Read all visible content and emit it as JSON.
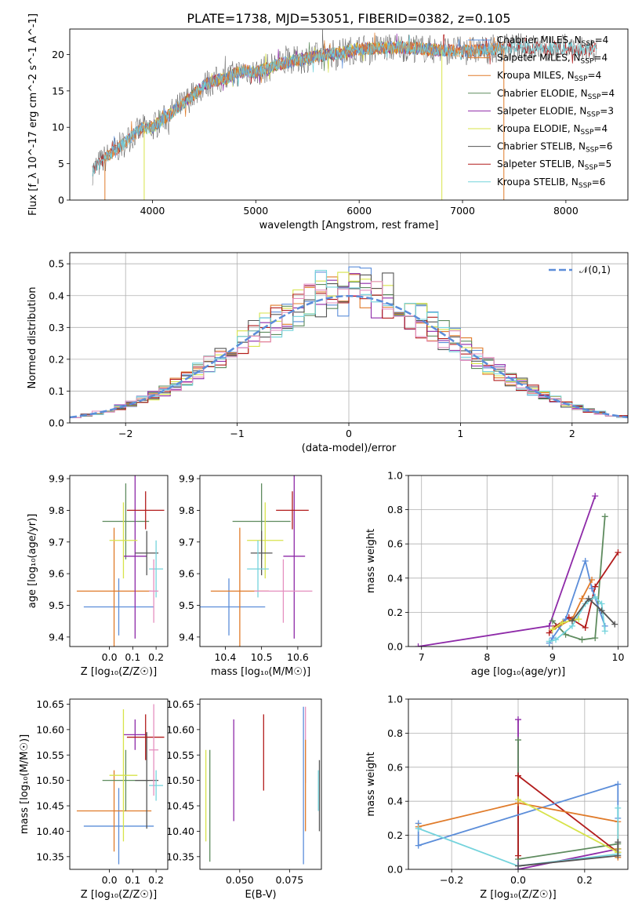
{
  "figure": {
    "title": "PLATE=1738, MJD=53051, FIBERID=0382, z=0.105",
    "colors": {
      "Chabrier MILES": "#5b8dd9",
      "Salpeter MILES": "#e07b2a",
      "Kroupa MILES": "#e07b2a",
      "Chabrier ELODIE": "#5e8b5e",
      "Salpeter ELODIE": "#8e2aa8",
      "Kroupa ELODIE": "#d7e34a",
      "Chabrier STELIB": "#555555",
      "Salpeter STELIB": "#b21c1c",
      "Kroupa STELIB": "#74d3dc",
      "extra_pink": "#e58fbf",
      "normal": "#5b8dd9"
    }
  },
  "chart_data": [
    {
      "id": "spectrum",
      "type": "line",
      "xlabel": "wavelength [Angstrom, rest frame]",
      "ylabel": "Flux [f_λ 10^-17 erg cm^-2 s^-1 A^-1]",
      "xlim": [
        3200,
        8600
      ],
      "ylim": [
        0,
        23.5
      ],
      "xticks": [
        4000,
        5000,
        6000,
        7000,
        8000
      ],
      "yticks": [
        0,
        5,
        10,
        15,
        20
      ],
      "grid": false,
      "legend_position": "right",
      "envelope": {
        "x": [
          3420,
          3500,
          3600,
          3700,
          3800,
          3900,
          4000,
          4100,
          4200,
          4300,
          4400,
          4500,
          4600,
          4700,
          4800,
          4900,
          5000,
          5200,
          5400,
          5600,
          5800,
          6000,
          6200,
          6400,
          6600,
          6800,
          7000,
          7200,
          7400,
          7600,
          7800,
          8000,
          8200,
          8300
        ],
        "y": [
          4.0,
          5.2,
          6.4,
          7.5,
          8.8,
          9.8,
          10.0,
          11.0,
          12.2,
          13.3,
          14.5,
          15.8,
          16.4,
          16.6,
          17.4,
          17.8,
          17.5,
          18.6,
          19.2,
          19.8,
          20.2,
          20.8,
          20.9,
          21.0,
          20.8,
          20.6,
          20.5,
          20.6,
          20.9,
          21.0,
          20.8,
          20.9,
          20.6,
          20.7
        ]
      },
      "legend": [
        {
          "base": "Chabrier MILES, N",
          "sub": "SSP",
          "value": "=4"
        },
        {
          "base": "Salpeter MILES, N",
          "sub": "SSP",
          "value": "=4"
        },
        {
          "base": "Kroupa MILES, N",
          "sub": "SSP",
          "value": "=4"
        },
        {
          "base": "Chabrier ELODIE, N",
          "sub": "SSP",
          "value": "=4"
        },
        {
          "base": "Salpeter ELODIE, N",
          "sub": "SSP",
          "value": "=3"
        },
        {
          "base": "Kroupa ELODIE, N",
          "sub": "SSP",
          "value": "=4"
        },
        {
          "base": "Chabrier STELIB, N",
          "sub": "SSP",
          "value": "=6"
        },
        {
          "base": "Salpeter STELIB, N",
          "sub": "SSP",
          "value": "=5"
        },
        {
          "base": "Kroupa STELIB, N",
          "sub": "SSP",
          "value": "=6"
        }
      ]
    },
    {
      "id": "residual_hist",
      "type": "histogram",
      "xlabel": "(data-model)/error",
      "ylabel": "Normed distribution",
      "xlim": [
        -2.5,
        2.5
      ],
      "ylim": [
        0,
        0.535
      ],
      "xticks": [
        -2,
        -1,
        0,
        1,
        2
      ],
      "yticks": [
        0.0,
        0.1,
        0.2,
        0.3,
        0.4,
        0.5
      ],
      "grid": true,
      "legend": [
        "𝒩(0,1)"
      ],
      "legend_position": "top-right",
      "normal_curve": {
        "mean": 0,
        "sigma": 1
      }
    },
    {
      "id": "age_vs_Z",
      "type": "errorbar",
      "xlabel": "Z [log₁₀(Z/Z☉)]",
      "ylabel": "age  [log₁₀(age/yr)]",
      "xlim": [
        -0.17,
        0.25
      ],
      "ylim": [
        9.37,
        9.91
      ],
      "xticks": [
        0.0,
        0.1,
        0.2
      ],
      "yticks": [
        9.4,
        9.5,
        9.6,
        9.7,
        9.8,
        9.9
      ],
      "points": [
        {
          "series": "Chabrier MILES",
          "x": 0.04,
          "xerr": 0.15,
          "y": 9.495,
          "yerr": 0.09
        },
        {
          "series": "Kroupa MILES",
          "x": 0.02,
          "xerr": 0.16,
          "y": 9.545,
          "yerr": 0.2
        },
        {
          "series": "Chabrier ELODIE",
          "x": 0.07,
          "xerr": 0.1,
          "y": 9.765,
          "yerr": 0.12
        },
        {
          "series": "Salpeter ELODIE",
          "x": 0.11,
          "xerr": 0.05,
          "y": 9.655,
          "yerr": 0.26
        },
        {
          "series": "Kroupa ELODIE",
          "x": 0.06,
          "xerr": 0.06,
          "y": 9.705,
          "yerr": 0.12
        },
        {
          "series": "Chabrier STELIB",
          "x": 0.16,
          "xerr": 0.05,
          "y": 9.665,
          "yerr": 0.07
        },
        {
          "series": "Salpeter STELIB",
          "x": 0.155,
          "xerr": 0.08,
          "y": 9.8,
          "yerr": 0.06
        },
        {
          "series": "Kroupa STELIB",
          "x": 0.2,
          "xerr": 0.03,
          "y": 9.615,
          "yerr": 0.09
        },
        {
          "series": "extra_pink",
          "x": 0.19,
          "xerr": 0.02,
          "y": 9.545,
          "yerr": 0.1
        }
      ]
    },
    {
      "id": "age_vs_mass",
      "type": "errorbar",
      "xlabel": "mass [log₁₀(M/M☉)]",
      "xlim": [
        10.33,
        10.665
      ],
      "ylim": [
        9.37,
        9.91
      ],
      "xticks": [
        10.4,
        10.5,
        10.6
      ],
      "yticks": [
        9.4,
        9.5,
        9.6,
        9.7,
        9.8,
        9.9
      ],
      "points": [
        {
          "series": "Chabrier MILES",
          "x": 10.41,
          "xerr": 0.1,
          "y": 9.495,
          "yerr": 0.09
        },
        {
          "series": "Kroupa MILES",
          "x": 10.44,
          "xerr": 0.08,
          "y": 9.545,
          "yerr": 0.2
        },
        {
          "series": "Chabrier ELODIE",
          "x": 10.5,
          "xerr": 0.08,
          "y": 9.765,
          "yerr": 0.12
        },
        {
          "series": "Salpeter ELODIE",
          "x": 10.59,
          "xerr": 0.03,
          "y": 9.655,
          "yerr": 0.26
        },
        {
          "series": "Kroupa ELODIE",
          "x": 10.51,
          "xerr": 0.05,
          "y": 9.705,
          "yerr": 0.12
        },
        {
          "series": "Chabrier STELIB",
          "x": 10.5,
          "xerr": 0.03,
          "y": 9.665,
          "yerr": 0.07
        },
        {
          "series": "Salpeter STELIB",
          "x": 10.585,
          "xerr": 0.045,
          "y": 9.8,
          "yerr": 0.06
        },
        {
          "series": "Kroupa STELIB",
          "x": 10.49,
          "xerr": 0.03,
          "y": 9.615,
          "yerr": 0.09
        },
        {
          "series": "extra_pink",
          "x": 10.56,
          "xerr": 0.08,
          "y": 9.545,
          "yerr": 0.1
        }
      ]
    },
    {
      "id": "mass_weight_vs_age",
      "type": "line",
      "xlabel": "age  [log₁₀(age/yr)]",
      "ylabel": "mass weight",
      "xlim": [
        6.8,
        10.15
      ],
      "ylim": [
        0,
        1
      ],
      "xticks": [
        7,
        8,
        9,
        10
      ],
      "yticks": [
        0.0,
        0.2,
        0.4,
        0.6,
        0.8,
        1.0
      ],
      "grid": true,
      "series": [
        {
          "series": "Salpeter ELODIE",
          "x": [
            6.95,
            8.95,
            9.65
          ],
          "y": [
            0.0,
            0.12,
            0.88
          ]
        },
        {
          "series": "Chabrier ELODIE",
          "x": [
            9.0,
            9.2,
            9.45,
            9.65,
            9.8
          ],
          "y": [
            0.15,
            0.07,
            0.04,
            0.05,
            0.76
          ]
        },
        {
          "series": "Salpeter STELIB",
          "x": [
            8.95,
            9.05,
            9.25,
            9.5,
            9.65,
            10.0
          ],
          "y": [
            0.08,
            0.12,
            0.17,
            0.11,
            0.35,
            0.55
          ]
        },
        {
          "series": "Chabrier MILES",
          "x": [
            8.95,
            9.0,
            9.2,
            9.5,
            9.6,
            9.8
          ],
          "y": [
            0.02,
            0.05,
            0.16,
            0.5,
            0.34,
            0.12
          ]
        },
        {
          "series": "Kroupa MILES",
          "x": [
            9.0,
            9.3,
            9.45,
            9.6
          ],
          "y": [
            0.1,
            0.16,
            0.28,
            0.39
          ]
        },
        {
          "series": "Kroupa STELIB",
          "x": [
            8.95,
            9.05,
            9.3,
            9.5,
            9.65,
            9.75,
            9.8
          ],
          "y": [
            0.03,
            0.04,
            0.12,
            0.25,
            0.29,
            0.25,
            0.09
          ]
        },
        {
          "series": "Kroupa ELODIE",
          "x": [
            9.0,
            9.15,
            9.4
          ],
          "y": [
            0.1,
            0.14,
            0.16
          ]
        },
        {
          "series": "Chabrier STELIB",
          "x": [
            9.3,
            9.55,
            9.75,
            9.95
          ],
          "y": [
            0.15,
            0.28,
            0.21,
            0.13
          ]
        }
      ]
    },
    {
      "id": "mass_vs_Z",
      "type": "errorbar",
      "xlabel": "Z [log₁₀(Z/Z☉)]",
      "ylabel": "mass [log₁₀(M/M☉)]",
      "xlim": [
        -0.17,
        0.25
      ],
      "ylim": [
        10.325,
        10.66
      ],
      "xticks": [
        0.0,
        0.1,
        0.2
      ],
      "yticks": [
        10.35,
        10.4,
        10.45,
        10.5,
        10.55,
        10.6,
        10.65
      ],
      "points": [
        {
          "series": "Chabrier MILES",
          "x": 0.04,
          "xerr": 0.15,
          "y": 10.41,
          "yerr": 0.075
        },
        {
          "series": "Kroupa MILES",
          "x": 0.02,
          "xerr": 0.16,
          "y": 10.44,
          "yerr": 0.08
        },
        {
          "series": "Chabrier ELODIE",
          "x": 0.07,
          "xerr": 0.1,
          "y": 10.5,
          "yerr": 0.06
        },
        {
          "series": "Salpeter ELODIE",
          "x": 0.11,
          "xerr": 0.05,
          "y": 10.59,
          "yerr": 0.03
        },
        {
          "series": "Kroupa ELODIE",
          "x": 0.06,
          "xerr": 0.06,
          "y": 10.51,
          "yerr": 0.13
        },
        {
          "series": "Chabrier STELIB",
          "x": 0.16,
          "xerr": 0.05,
          "y": 10.5,
          "yerr": 0.095
        },
        {
          "series": "Salpeter STELIB",
          "x": 0.155,
          "xerr": 0.08,
          "y": 10.585,
          "yerr": 0.045
        },
        {
          "series": "Kroupa STELIB",
          "x": 0.2,
          "xerr": 0.03,
          "y": 10.49,
          "yerr": 0.03
        },
        {
          "series": "extra_pink",
          "x": 0.19,
          "xerr": 0.02,
          "y": 10.56,
          "yerr": 0.09
        }
      ]
    },
    {
      "id": "mass_vs_EBV",
      "type": "errorbar",
      "xlabel": "E(B-V)",
      "xlim": [
        0.03,
        0.091
      ],
      "ylim": [
        10.325,
        10.66
      ],
      "xticks": [
        0.05,
        0.075
      ],
      "xticklabels": [
        "0.050",
        "0.075"
      ],
      "yticks": [
        10.35,
        10.4,
        10.45,
        10.5,
        10.55,
        10.6,
        10.65
      ],
      "points": [
        {
          "series": "Kroupa ELODIE",
          "x": 0.033,
          "y": 10.47,
          "yerr": 0.09
        },
        {
          "series": "Chabrier ELODIE",
          "x": 0.035,
          "y": 10.45,
          "yerr": 0.11
        },
        {
          "series": "Salpeter ELODIE",
          "x": 0.047,
          "y": 10.52,
          "yerr": 0.1
        },
        {
          "series": "Salpeter STELIB",
          "x": 0.062,
          "y": 10.555,
          "yerr": 0.075
        },
        {
          "series": "Chabrier MILES",
          "x": 0.082,
          "y": 10.49,
          "yerr": 0.155
        },
        {
          "series": "extra_pink",
          "x": 0.083,
          "y": 10.57,
          "yerr": 0.075
        },
        {
          "series": "Kroupa MILES",
          "x": 0.083,
          "y": 10.49,
          "yerr": 0.09
        },
        {
          "series": "Chabrier STELIB",
          "x": 0.09,
          "y": 10.47,
          "yerr": 0.07
        },
        {
          "series": "Kroupa STELIB",
          "x": 0.0895,
          "y": 10.48,
          "yerr": 0.04
        }
      ]
    },
    {
      "id": "mass_weight_vs_Z",
      "type": "line",
      "xlabel": "Z [log₁₀(Z/Z☉)]",
      "ylabel": "mass weight",
      "xlim": [
        -0.33,
        0.33
      ],
      "ylim": [
        0,
        1
      ],
      "xticks": [
        -0.2,
        0.0,
        0.2
      ],
      "yticks": [
        0.0,
        0.2,
        0.4,
        0.6,
        0.8,
        1.0
      ],
      "grid": true,
      "series": [
        {
          "series": "Salpeter ELODIE",
          "x": [
            0.0,
            0.0,
            0.0,
            0.3
          ],
          "y": [
            0.88,
            0.0,
            0.0,
            0.12
          ]
        },
        {
          "series": "Chabrier ELODIE",
          "x": [
            0.0,
            0.0,
            0.3
          ],
          "y": [
            0.76,
            0.06,
            0.15
          ]
        },
        {
          "series": "Salpeter STELIB",
          "x": [
            0.0,
            0.0,
            0.0,
            0.3,
            0.3
          ],
          "y": [
            0.08,
            0.55,
            0.55,
            0.1,
            0.12
          ]
        },
        {
          "series": "Chabrier MILES",
          "x": [
            -0.3,
            -0.3,
            0.3,
            0.3
          ],
          "y": [
            0.27,
            0.14,
            0.5,
            0.3
          ]
        },
        {
          "series": "Kroupa MILES",
          "x": [
            -0.3,
            0.0,
            0.3,
            0.3
          ],
          "y": [
            0.25,
            0.39,
            0.28,
            0.07
          ]
        },
        {
          "series": "Kroupa ELODIE",
          "x": [
            0.0,
            0.3,
            0.3
          ],
          "y": [
            0.41,
            0.1,
            0.12
          ]
        },
        {
          "series": "Kroupa STELIB",
          "x": [
            -0.3,
            0.0,
            0.3,
            0.3
          ],
          "y": [
            0.24,
            0.02,
            0.09,
            0.36
          ]
        },
        {
          "series": "Chabrier STELIB",
          "x": [
            0.0,
            0.3,
            0.3
          ],
          "y": [
            0.02,
            0.08,
            0.16
          ]
        }
      ]
    }
  ]
}
